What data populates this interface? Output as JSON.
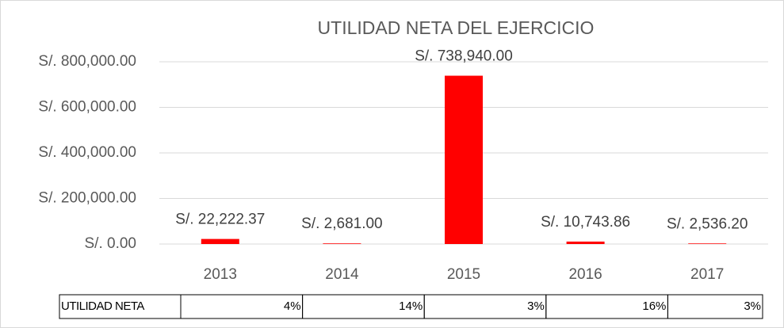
{
  "chart_data": {
    "type": "bar",
    "title": "UTILIDAD NETA DEL EJERCICIO",
    "categories": [
      "2013",
      "2014",
      "2015",
      "2016",
      "2017"
    ],
    "values": [
      22222.37,
      2681,
      738940,
      10743.86,
      2536.2
    ],
    "value_labels": [
      "S/. 22,222.37",
      "S/. 2,681.00",
      "S/. 738,940.00",
      "S/. 10,743.86",
      "S/. 2,536.20"
    ],
    "color": "#ff0000",
    "ylim": [
      0,
      800000
    ],
    "yticks": [
      {
        "value": 0,
        "label": "S/. 0.00"
      },
      {
        "value": 200000,
        "label": "S/. 200,000.00"
      },
      {
        "value": 400000,
        "label": "S/. 400,000.00"
      },
      {
        "value": 600000,
        "label": "S/. 600,000.00"
      },
      {
        "value": 800000,
        "label": "S/. 800,000.00"
      }
    ],
    "grid": true
  },
  "table": {
    "header": "UTILIDAD NETA",
    "cells": [
      "4%",
      "14%",
      "3%",
      "16%",
      "3%"
    ]
  }
}
